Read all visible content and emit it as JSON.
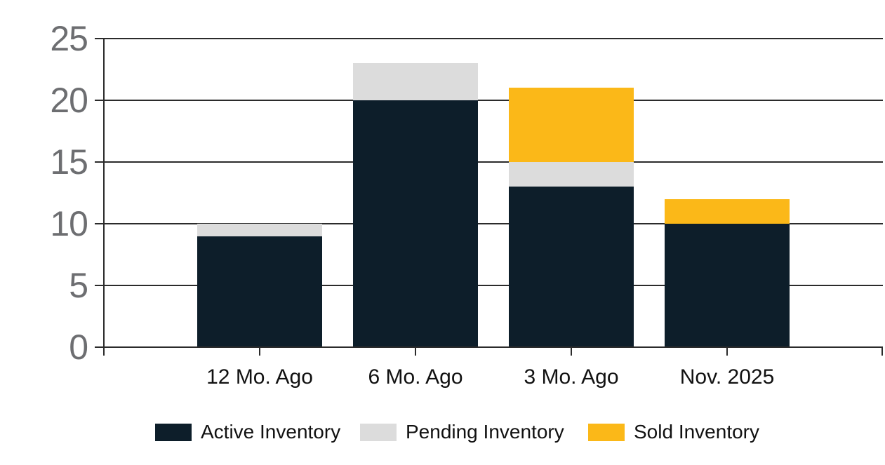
{
  "chart_data": {
    "type": "bar",
    "stacked": true,
    "title": "",
    "xlabel": "",
    "ylabel": "",
    "categories": [
      "12 Mo. Ago",
      "6 Mo. Ago",
      "3 Mo. Ago",
      "Nov. 2025"
    ],
    "series": [
      {
        "name": "Active Inventory",
        "color": "#0D1E2A",
        "values": [
          9,
          20,
          13,
          10
        ]
      },
      {
        "name": "Pending Inventory",
        "color": "#DCDCDC",
        "values": [
          1,
          3,
          2,
          0
        ]
      },
      {
        "name": "Sold Inventory",
        "color": "#FBB818",
        "values": [
          0,
          0,
          6,
          2
        ]
      }
    ],
    "stack_totals": [
      10,
      23,
      21,
      12
    ],
    "ylim": [
      0,
      25
    ],
    "yticks": [
      0,
      5,
      10,
      15,
      20,
      25
    ],
    "grid": true,
    "legend_position": "bottom"
  },
  "axis_style": {
    "tick_label_color": "#6D6E71",
    "category_label_color": "#111111",
    "legend_label_color": "#111111",
    "line_color": "#2B2B2B",
    "background_color": "#FFFFFF"
  }
}
